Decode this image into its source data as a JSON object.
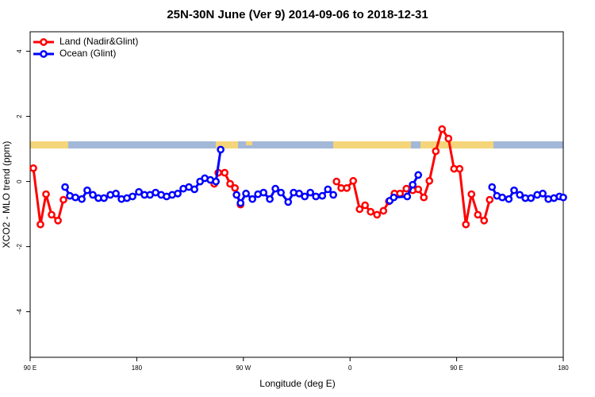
{
  "chart_data": {
    "type": "line",
    "title": "25N-30N June (Ver 9)   2014-09-06 to 2018-12-31",
    "x_label": "Longitude (deg E)",
    "y_label": "XCO2 - MLO trend (ppm)",
    "xlim": [
      90,
      540
    ],
    "ylim": [
      -5.4,
      4.6
    ],
    "xticks": [
      {
        "value": 90,
        "label": "90 E"
      },
      {
        "value": 180,
        "label": "180"
      },
      {
        "value": 270,
        "label": "90 W"
      },
      {
        "value": 360,
        "label": "0"
      },
      {
        "value": 450,
        "label": "90 E"
      },
      {
        "value": 540,
        "label": "180"
      }
    ],
    "yticks": [
      -4,
      -2,
      0,
      2,
      4
    ],
    "legend": "top-left",
    "series": [
      {
        "name": "Land (Nadir&Glint)",
        "color": "#ff0000",
        "x": [
          92.7,
          98.7,
          103.4,
          108.1,
          113.5,
          118.1,
          null,
          245.4,
          248.8,
          254.2,
          258.8,
          262.9,
          267.6,
          null,
          348.6,
          352.6,
          357.3,
          362.7,
          368.1,
          372.7,
          377.4,
          382.8,
          388.2,
          392.8,
          397.5,
          402.2,
          407.6,
          412.9,
          417.6,
          422.3,
          427.0,
          432.4,
          437.7,
          443.1,
          447.8,
          452.5,
          457.8,
          462.5,
          467.9,
          473.2,
          477.9
        ],
        "values": [
          0.41,
          -1.32,
          -0.39,
          -1.02,
          -1.2,
          -0.56,
          null,
          -0.07,
          0.27,
          0.27,
          -0.07,
          -0.2,
          -0.71,
          null,
          0.0,
          -0.2,
          -0.2,
          0.02,
          -0.85,
          -0.73,
          -0.93,
          -1.02,
          -0.9,
          -0.61,
          -0.37,
          -0.37,
          -0.22,
          -0.27,
          -0.24,
          -0.49,
          0.02,
          0.93,
          1.61,
          1.32,
          0.39,
          0.39,
          -1.32,
          -0.39,
          -1.02,
          -1.2,
          -0.56
        ]
      },
      {
        "name": "Ocean (Glint)",
        "color": "#0000ff",
        "x": [
          119.5,
          123.5,
          128.2,
          133.6,
          138.2,
          142.9,
          147.6,
          152.3,
          157.7,
          162.4,
          167.1,
          171.7,
          176.4,
          181.8,
          186.5,
          191.2,
          195.9,
          200.6,
          205.2,
          209.9,
          214.6,
          219.3,
          224.0,
          228.7,
          233.4,
          237.4,
          242.1,
          246.8,
          250.8,
          null,
          264.2,
          267.6,
          272.2,
          277.6,
          282.3,
          287.0,
          292.3,
          297.0,
          301.7,
          307.8,
          312.4,
          317.1,
          321.8,
          326.5,
          331.2,
          336.6,
          341.3,
          345.9,
          null,
          393.5,
          396.9,
          408.3,
          412.9,
          417.6,
          null,
          479.9,
          484.0,
          488.5,
          494.0,
          498.5,
          503.3,
          508.0,
          512.7,
          518.0,
          522.7,
          527.4,
          532.1,
          536.8,
          540.0
        ],
        "values": [
          -0.17,
          -0.44,
          -0.49,
          -0.54,
          -0.27,
          -0.41,
          -0.51,
          -0.51,
          -0.41,
          -0.37,
          -0.54,
          -0.51,
          -0.46,
          -0.32,
          -0.41,
          -0.41,
          -0.34,
          -0.41,
          -0.46,
          -0.41,
          -0.37,
          -0.22,
          -0.17,
          -0.24,
          0.0,
          0.1,
          0.05,
          0.0,
          0.98,
          null,
          -0.41,
          -0.66,
          -0.37,
          -0.54,
          -0.39,
          -0.34,
          -0.54,
          -0.22,
          -0.34,
          -0.63,
          -0.34,
          -0.37,
          -0.46,
          -0.34,
          -0.46,
          -0.44,
          -0.24,
          -0.41,
          null,
          -0.59,
          -0.49,
          -0.46,
          -0.1,
          0.2,
          null,
          -0.17,
          -0.44,
          -0.49,
          -0.54,
          -0.27,
          -0.41,
          -0.51,
          -0.51,
          -0.41,
          -0.37,
          -0.54,
          -0.51,
          -0.46,
          -0.49
        ]
      }
    ]
  }
}
